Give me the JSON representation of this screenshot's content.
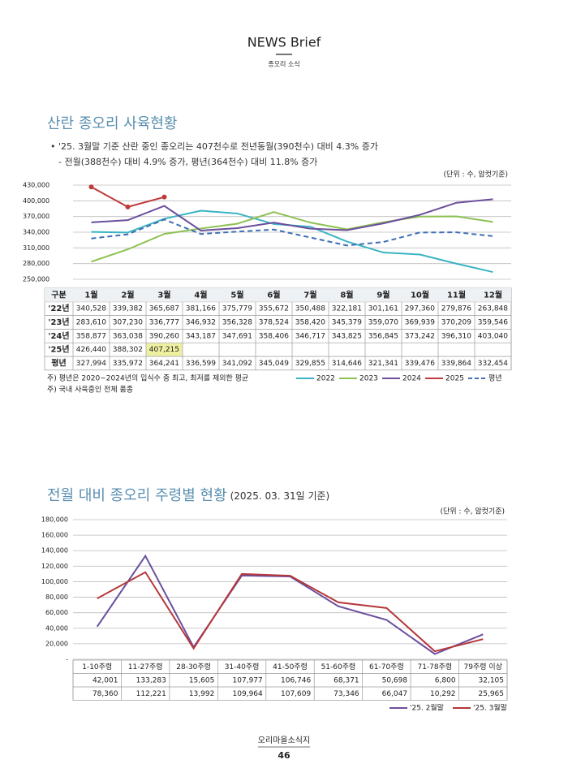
{
  "header": {
    "title": "NEWS Brief",
    "subtitle": "종오리 소식"
  },
  "chart_data": [
    {
      "type": "line",
      "title": "산란 종오리 사육현황",
      "notes": [
        "• '25. 3월말 기준 산란 중인 종오리는 407천수로  전년동월(390천수) 대비 4.3% 증가",
        "- 전월(388천수) 대비 4.9% 증가, 평년(364천수) 대비 11.8% 증가"
      ],
      "unit": "(단위 : 수, 암컷기준)",
      "corner_label": "구분",
      "categories": [
        "1월",
        "2월",
        "3월",
        "4월",
        "5월",
        "6월",
        "7월",
        "8월",
        "9월",
        "10월",
        "11월",
        "12월"
      ],
      "ylim": [
        250000,
        430000
      ],
      "yticks": [
        {
          "value": 250000,
          "label": "250,000"
        },
        {
          "value": 280000,
          "label": "280,000"
        },
        {
          "value": 310000,
          "label": "310,000"
        },
        {
          "value": 340000,
          "label": "340,000"
        },
        {
          "value": 370000,
          "label": "370,000"
        },
        {
          "value": 400000,
          "label": "400,000"
        },
        {
          "value": 430000,
          "label": "430,000"
        }
      ],
      "grid": true,
      "series": [
        {
          "name": "2022",
          "row_label": "'22년",
          "color": "#3bb3c3",
          "values": [
            340528,
            339382,
            365687,
            381166,
            375779,
            355672,
            350488,
            322181,
            301161,
            297360,
            279876,
            263848
          ],
          "value_labels": [
            "340,528",
            "339,382",
            "365,687",
            "381,166",
            "375,779",
            "355,672",
            "350,488",
            "322,181",
            "301,161",
            "297,360",
            "279,876",
            "263,848"
          ]
        },
        {
          "name": "2023",
          "row_label": "'23년",
          "color": "#8dc153",
          "values": [
            283610,
            307230,
            336777,
            346932,
            356328,
            378524,
            358420,
            345379,
            359070,
            369939,
            370209,
            359546
          ],
          "value_labels": [
            "283,610",
            "307,230",
            "336,777",
            "346,932",
            "356,328",
            "378,524",
            "358,420",
            "345,379",
            "359,070",
            "369,939",
            "370,209",
            "359,546"
          ]
        },
        {
          "name": "2024",
          "row_label": "'24년",
          "color": "#6b4f9e",
          "values": [
            358877,
            363038,
            390260,
            343187,
            347691,
            358406,
            346717,
            343825,
            356845,
            373242,
            396310,
            403040
          ],
          "value_labels": [
            "358,877",
            "363,038",
            "390,260",
            "343,187",
            "347,691",
            "358,406",
            "346,717",
            "343,825",
            "356,845",
            "373,242",
            "396,310",
            "403,040"
          ]
        },
        {
          "name": "2025",
          "row_label": "'25년",
          "color": "#c0393b",
          "markers": true,
          "values": [
            426440,
            388302,
            407215,
            null,
            null,
            null,
            null,
            null,
            null,
            null,
            null,
            null
          ],
          "value_labels": [
            "426,440",
            "388,302",
            "407,215",
            null,
            null,
            null,
            null,
            null,
            null,
            null,
            null,
            null
          ]
        },
        {
          "name": "평년",
          "row_label": "평년",
          "color": "#3f6fb5",
          "dash": true,
          "values": [
            327994,
            335972,
            364241,
            336599,
            341092,
            345049,
            329855,
            314646,
            321341,
            339476,
            339864,
            332454
          ],
          "value_labels": [
            "327,994",
            "335,972",
            "364,241",
            "336,599",
            "341,092",
            "345,049",
            "329,855",
            "314,646",
            "321,341",
            "339,476",
            "339,864",
            "332,454"
          ]
        }
      ],
      "footnotes": [
        "주) 평년은 2020~2024년의 입식수 중 최고, 최저를 제외한 평균",
        "주) 국내 사육중인 전체 품종"
      ]
    },
    {
      "type": "line",
      "title": "전월 대비 종오리 주령별 현황",
      "subtitle": "(2025. 03. 31일 기준)",
      "unit": "(단위 : 수, 암컷기준)",
      "categories": [
        "1-10주령",
        "11-27주령",
        "28-30주령",
        "31-40주령",
        "41-50주령",
        "51-60주령",
        "61-70주령",
        "71-78주령",
        "79주령 이상"
      ],
      "ylim": [
        0,
        180000
      ],
      "yticks": [
        {
          "value": 0,
          "label": "-"
        },
        {
          "value": 20000,
          "label": "20,000"
        },
        {
          "value": 40000,
          "label": "40,000"
        },
        {
          "value": 60000,
          "label": "60,000"
        },
        {
          "value": 80000,
          "label": "80,000"
        },
        {
          "value": 100000,
          "label": "100,000"
        },
        {
          "value": 120000,
          "label": "120,000"
        },
        {
          "value": 140000,
          "label": "140,000"
        },
        {
          "value": 160000,
          "label": "160,000"
        },
        {
          "value": 180000,
          "label": "180,000"
        }
      ],
      "grid": true,
      "series": [
        {
          "name": "'25. 2월말",
          "color": "#6b4f9e",
          "values": [
            42001,
            133283,
            15605,
            107977,
            106746,
            68371,
            50698,
            6800,
            32105
          ],
          "value_labels": [
            "42,001",
            "133,283",
            "15,605",
            "107,977",
            "106,746",
            "68,371",
            "50,698",
            "6,800",
            "32,105"
          ]
        },
        {
          "name": "'25. 3월말",
          "color": "#b5373a",
          "values": [
            78360,
            112221,
            13992,
            109964,
            107609,
            73346,
            66047,
            10292,
            25965
          ],
          "value_labels": [
            "78,360",
            "112,221",
            "13,992",
            "109,964",
            "107,609",
            "73,346",
            "66,047",
            "10,292",
            "25,965"
          ]
        }
      ]
    }
  ],
  "footer": {
    "title": "오리마을소식지",
    "page": "46"
  }
}
